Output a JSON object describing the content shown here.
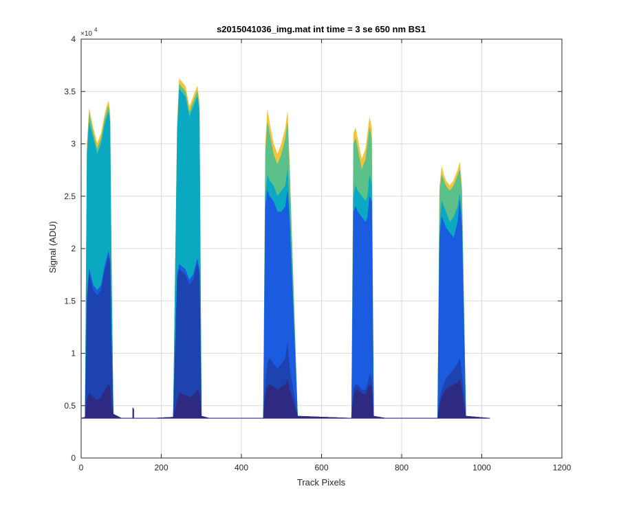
{
  "chart_data": {
    "type": "area",
    "title": "s2015041036_img.mat int time = 3 se  650 nm BS1",
    "xlabel": "Track Pixels",
    "ylabel": "Signal (ADU)",
    "y_exponent_label": "×10",
    "y_exponent_power": "4",
    "xlim": [
      0,
      1200
    ],
    "ylim": [
      0,
      40000
    ],
    "x_ticks": [
      0,
      200,
      400,
      600,
      800,
      1000,
      1200
    ],
    "x_tick_labels": [
      "0",
      "200",
      "400",
      "600",
      "800",
      "1000",
      "1200"
    ],
    "y_ticks": [
      0,
      5000,
      10000,
      15000,
      20000,
      25000,
      30000,
      35000,
      40000
    ],
    "y_tick_labels": [
      "0",
      "0.5",
      "1",
      "1.5",
      "2",
      "2.5",
      "3",
      "3.5",
      "4"
    ],
    "grid": true,
    "baseline": 3800,
    "series": [
      {
        "color": "#f2c43a",
        "x": [
          0,
          10,
          15,
          20,
          30,
          40,
          50,
          60,
          68,
          72,
          75,
          80,
          100,
          180,
          230,
          240,
          245,
          260,
          270,
          280,
          290,
          295,
          300,
          320,
          455,
          460,
          465,
          470,
          480,
          490,
          500,
          510,
          515,
          520,
          540,
          675,
          680,
          685,
          690,
          700,
          710,
          715,
          720,
          725,
          730,
          760,
          890,
          895,
          900,
          905,
          910,
          920,
          930,
          940,
          945,
          950,
          960,
          1020
        ],
        "y": [
          3800,
          3900,
          30000,
          33300,
          31500,
          30000,
          31000,
          33000,
          34100,
          33000,
          20000,
          4200,
          3800,
          3800,
          3900,
          32000,
          36200,
          35500,
          33500,
          34500,
          35500,
          34000,
          4000,
          3800,
          3800,
          30000,
          33200,
          32000,
          30000,
          29000,
          30000,
          31500,
          33000,
          28000,
          4000,
          3800,
          31000,
          31500,
          30500,
          28500,
          29500,
          31000,
          32500,
          31500,
          4000,
          3800,
          3800,
          26000,
          27800,
          27000,
          26500,
          26000,
          26500,
          27500,
          28200,
          26000,
          4000,
          3800
        ]
      },
      {
        "color": "#5cc08a",
        "x": [
          0,
          10,
          15,
          20,
          30,
          40,
          50,
          60,
          68,
          72,
          75,
          80,
          100,
          180,
          230,
          240,
          245,
          260,
          270,
          280,
          290,
          295,
          300,
          320,
          455,
          460,
          465,
          470,
          480,
          490,
          500,
          510,
          515,
          520,
          540,
          675,
          680,
          685,
          690,
          700,
          710,
          715,
          720,
          725,
          730,
          760,
          890,
          895,
          900,
          905,
          910,
          920,
          930,
          940,
          945,
          950,
          960,
          1020
        ],
        "y": [
          3800,
          3900,
          29500,
          32800,
          31000,
          29500,
          30500,
          32500,
          33600,
          32500,
          19500,
          4200,
          3800,
          3800,
          3900,
          31500,
          35700,
          35000,
          33000,
          34000,
          35000,
          33500,
          4000,
          3800,
          3800,
          29000,
          32000,
          31000,
          29000,
          28000,
          29000,
          30500,
          32000,
          27500,
          4000,
          3800,
          30000,
          30500,
          29500,
          27500,
          28500,
          30000,
          31500,
          30500,
          4000,
          3800,
          3800,
          25500,
          27000,
          26500,
          26000,
          25500,
          26000,
          27000,
          27500,
          25500,
          4000,
          3800
        ]
      },
      {
        "color": "#0ba8c2",
        "x": [
          0,
          10,
          15,
          20,
          30,
          40,
          50,
          60,
          68,
          72,
          75,
          80,
          100,
          180,
          230,
          240,
          245,
          260,
          270,
          280,
          290,
          295,
          300,
          320,
          455,
          460,
          465,
          470,
          480,
          490,
          500,
          510,
          515,
          520,
          540,
          675,
          680,
          685,
          690,
          700,
          710,
          715,
          720,
          725,
          730,
          760,
          890,
          895,
          900,
          905,
          910,
          920,
          930,
          940,
          945,
          950,
          960,
          1020
        ],
        "y": [
          3800,
          3900,
          29000,
          32000,
          30500,
          29000,
          30000,
          32000,
          33000,
          32000,
          19000,
          4200,
          3800,
          3800,
          3900,
          31000,
          35200,
          34500,
          32500,
          33500,
          34500,
          33000,
          4000,
          3800,
          3800,
          25000,
          27000,
          26500,
          26000,
          25000,
          25500,
          26000,
          27500,
          24000,
          4000,
          3800,
          25000,
          26000,
          25500,
          25000,
          24500,
          25000,
          27000,
          26000,
          4000,
          3800,
          3800,
          22000,
          24500,
          24000,
          23500,
          22500,
          23000,
          24000,
          25200,
          23000,
          4000,
          3800
        ]
      },
      {
        "color": "#1a5be0",
        "x": [
          0,
          10,
          15,
          20,
          30,
          40,
          50,
          60,
          68,
          72,
          75,
          80,
          100,
          180,
          230,
          240,
          245,
          260,
          270,
          280,
          290,
          295,
          300,
          320,
          455,
          460,
          465,
          470,
          480,
          490,
          500,
          510,
          515,
          520,
          540,
          675,
          680,
          685,
          690,
          700,
          710,
          715,
          720,
          725,
          730,
          760,
          890,
          895,
          900,
          905,
          910,
          920,
          930,
          940,
          945,
          950,
          960,
          1020
        ],
        "y": [
          3800,
          3900,
          15500,
          18000,
          16500,
          16000,
          16500,
          18500,
          19700,
          19000,
          12000,
          4200,
          3800,
          3800,
          3900,
          17500,
          18500,
          18000,
          17000,
          17500,
          19000,
          18000,
          4000,
          3800,
          3800,
          24000,
          25500,
          25000,
          24500,
          23500,
          23500,
          24000,
          25500,
          22500,
          4000,
          3800,
          23500,
          24000,
          23500,
          23000,
          22500,
          23000,
          25000,
          24500,
          4000,
          3800,
          3800,
          21000,
          23000,
          22500,
          22000,
          21500,
          21000,
          22500,
          24500,
          22000,
          4000,
          3800
        ]
      },
      {
        "color": "#1c43b0",
        "x": [
          0,
          10,
          15,
          20,
          30,
          40,
          50,
          60,
          68,
          72,
          75,
          80,
          100,
          180,
          230,
          240,
          245,
          260,
          270,
          280,
          290,
          295,
          300,
          320,
          455,
          460,
          465,
          470,
          480,
          490,
          500,
          510,
          515,
          520,
          540,
          675,
          680,
          685,
          690,
          700,
          710,
          715,
          720,
          725,
          730,
          760,
          890,
          895,
          900,
          905,
          910,
          920,
          930,
          940,
          945,
          950,
          960,
          1020
        ],
        "y": [
          3800,
          3900,
          15000,
          17500,
          16000,
          15500,
          16000,
          18000,
          19200,
          18500,
          11500,
          4200,
          3800,
          3800,
          3900,
          17000,
          18000,
          17500,
          16500,
          17000,
          18500,
          17500,
          4000,
          3800,
          3800,
          7000,
          9000,
          9500,
          9000,
          8500,
          9000,
          9500,
          11000,
          8500,
          4000,
          3800,
          6500,
          7000,
          7000,
          6500,
          6500,
          7000,
          8000,
          7500,
          4000,
          3800,
          3800,
          5500,
          6500,
          7000,
          7500,
          8000,
          8500,
          9000,
          9500,
          8000,
          4000,
          3800
        ]
      },
      {
        "color": "#2e2a82",
        "x": [
          0,
          10,
          15,
          20,
          30,
          40,
          50,
          60,
          68,
          72,
          75,
          80,
          100,
          180,
          230,
          240,
          245,
          260,
          270,
          280,
          290,
          295,
          300,
          320,
          455,
          460,
          465,
          470,
          480,
          490,
          500,
          510,
          515,
          520,
          540,
          675,
          680,
          685,
          690,
          700,
          710,
          715,
          720,
          725,
          730,
          760,
          890,
          895,
          900,
          905,
          910,
          920,
          930,
          940,
          945,
          950,
          960,
          1020
        ],
        "y": [
          3800,
          3900,
          5500,
          6200,
          5800,
          5500,
          5800,
          6500,
          7000,
          6800,
          5000,
          4200,
          3800,
          3800,
          3900,
          5500,
          6200,
          6000,
          5800,
          6000,
          6500,
          6200,
          4000,
          3800,
          3800,
          6000,
          6800,
          7000,
          6800,
          6500,
          6800,
          7000,
          7500,
          6500,
          4000,
          3800,
          5800,
          6500,
          6500,
          6200,
          6000,
          6500,
          7000,
          6800,
          4000,
          3800,
          3800,
          5000,
          5800,
          6200,
          6500,
          6800,
          7000,
          7200,
          7500,
          6500,
          4000,
          3800
        ]
      }
    ],
    "extra_marks": [
      {
        "x": 130,
        "y": 4800,
        "color": "#2e2a82"
      }
    ]
  }
}
